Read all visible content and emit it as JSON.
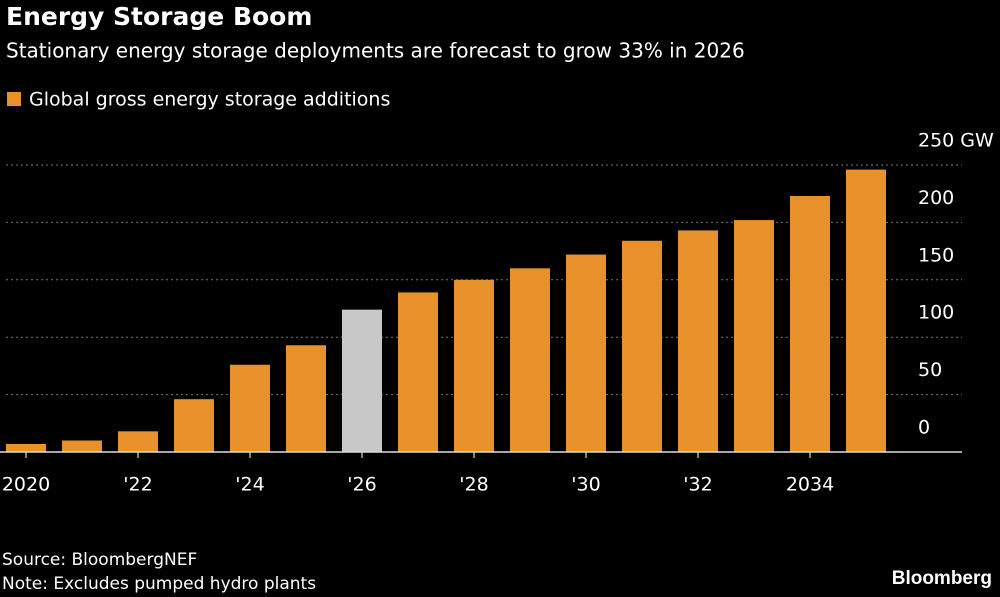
{
  "chart_data": {
    "type": "bar",
    "title": "Energy Storage Boom",
    "subtitle": "Stationary energy storage deployments are forecast to grow 33% in 2026",
    "categories": [
      "2020",
      null,
      "'22",
      null,
      "'24",
      null,
      "'26",
      null,
      "'28",
      null,
      "'30",
      null,
      "'32",
      null,
      "2034",
      null
    ],
    "series": [
      {
        "name": "Global gross energy storage additions",
        "color": "#e8912a",
        "values": [
          7,
          10,
          18,
          46,
          76,
          93,
          124,
          139,
          150,
          160,
          172,
          184,
          193,
          202,
          223,
          246
        ]
      }
    ],
    "bar_colors": [
      "#e8912a",
      "#e8912a",
      "#e8912a",
      "#e8912a",
      "#e8912a",
      "#e8912a",
      "#c8c8c8",
      "#e8912a",
      "#e8912a",
      "#e8912a",
      "#e8912a",
      "#e8912a",
      "#e8912a",
      "#e8912a",
      "#e8912a",
      "#e8912a"
    ],
    "ylim": [
      0,
      250
    ],
    "yticks": [
      0,
      50,
      100,
      150,
      200,
      {
        "value": 250,
        "label": "250 GW"
      }
    ],
    "grid": true,
    "source": "Source: BloombergNEF",
    "note": "Note: Excludes pumped hydro plants",
    "brand": "Bloomberg"
  }
}
